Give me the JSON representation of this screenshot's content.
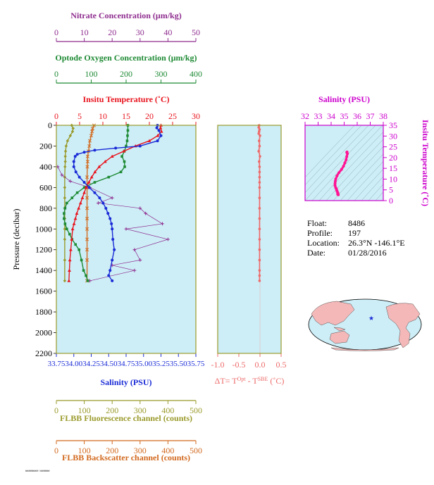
{
  "colors": {
    "nitrate": "#8e2c8e",
    "oxygen": "#1e8a34",
    "temperature": "#e8141e",
    "salinity": "#1a2bd6",
    "fluorescence": "#9a9a2c",
    "backscatter": "#d2691e",
    "delta_t": "#ee6a6a",
    "ts_axis": "#cc00cc",
    "ts_curve": "#ff1493",
    "plot_bg": "#cdeef7"
  },
  "info": {
    "float_label": "Float:",
    "float": "8486",
    "profile_label": "Profile:",
    "profile": "197",
    "location_label": "Location:",
    "location": "26.3°N  -146.1°E",
    "date_label": "Date:",
    "date": "01/28/2016"
  },
  "stamp": "######## / ######",
  "chart_data": [
    {
      "type": "line",
      "title": "",
      "ylabel": "Pressure (decibar)",
      "ylim": [
        2200,
        0
      ],
      "y_ticks": [
        0,
        200,
        400,
        600,
        800,
        1000,
        1200,
        1400,
        1600,
        1800,
        2000,
        2200
      ],
      "axes": {
        "nitrate": {
          "label": "Nitrate Concentration (μm/kg)",
          "range": [
            0,
            50
          ],
          "ticks": [
            0,
            10,
            20,
            30,
            40,
            50
          ]
        },
        "oxygen": {
          "label": "Optode Oxygen Concentration (μm/kg)",
          "range": [
            0,
            400
          ],
          "ticks": [
            0,
            100,
            200,
            300,
            400
          ]
        },
        "temperature": {
          "label": "Insitu Temperature (˚C)",
          "range": [
            0,
            30
          ],
          "ticks": [
            0,
            5,
            10,
            15,
            20,
            25,
            30
          ]
        },
        "salinity": {
          "label": "Salinity (PSU)",
          "range": [
            33.75,
            35.75
          ],
          "ticks": [
            "33.75",
            "34.00",
            "34.25",
            "34.50",
            "34.75",
            "35.00",
            "35.25",
            "35.50",
            "35.75"
          ]
        },
        "fluorescence": {
          "label": "FLBB Fluorescence channel (counts)",
          "range": [
            0,
            500
          ],
          "ticks": [
            0,
            100,
            200,
            300,
            400,
            500
          ]
        },
        "backscatter": {
          "label": "FLBB Backscatter channel (counts)",
          "range": [
            0,
            500
          ],
          "ticks": [
            0,
            100,
            200,
            300,
            400,
            500
          ]
        }
      },
      "series": [
        {
          "name": "Insitu Temperature (˚C)",
          "axis": "temperature",
          "marker": "triangle",
          "x": [
            22.5,
            22.4,
            22.6,
            21.8,
            20,
            17,
            14.5,
            12,
            10.5,
            9.2,
            8.3,
            7.6,
            7,
            6.4,
            6,
            5.6,
            5.2,
            4.8,
            4.4,
            4.1,
            3.8,
            3.5,
            3.3,
            3.1,
            2.9,
            2.8,
            2.7
          ],
          "y": [
            0,
            25,
            60,
            100,
            150,
            200,
            250,
            300,
            350,
            400,
            450,
            500,
            550,
            600,
            650,
            700,
            750,
            800,
            850,
            900,
            950,
            1000,
            1100,
            1200,
            1300,
            1400,
            1500
          ]
        },
        {
          "name": "Salinity (PSU)",
          "axis": "salinity",
          "marker": "circle",
          "x": [
            35.2,
            35.19,
            35.22,
            35.25,
            35.2,
            34.95,
            34.6,
            34.3,
            34.15,
            34.05,
            34.02,
            34.0,
            34.0,
            34.03,
            34.08,
            34.15,
            34.22,
            34.3,
            34.37,
            34.42,
            34.46,
            34.49,
            34.52,
            34.54,
            34.55,
            34.56,
            34.58,
            34.55,
            34.52,
            34.5,
            34.55
          ],
          "y": [
            0,
            25,
            50,
            100,
            150,
            200,
            220,
            240,
            260,
            280,
            300,
            350,
            400,
            450,
            500,
            550,
            600,
            650,
            700,
            750,
            800,
            850,
            900,
            950,
            1000,
            1100,
            1200,
            1300,
            1400,
            1450,
            1500
          ]
        },
        {
          "name": "Optode Oxygen Concentration (μm/kg)",
          "axis": "oxygen",
          "marker": "square",
          "x": [
            205,
            205,
            204,
            203,
            200,
            195,
            188,
            195,
            196,
            185,
            150,
            110,
            80,
            60,
            45,
            30,
            25,
            22,
            22,
            25,
            30,
            38,
            45,
            55,
            65,
            72,
            78,
            85,
            90
          ],
          "y": [
            0,
            50,
            100,
            150,
            200,
            250,
            300,
            350,
            400,
            450,
            500,
            550,
            600,
            650,
            700,
            750,
            800,
            850,
            900,
            950,
            1000,
            1050,
            1100,
            1150,
            1200,
            1300,
            1400,
            1450,
            1500
          ]
        },
        {
          "name": "Nitrate Concentration (μm/kg)",
          "axis": "nitrate",
          "marker": "plus",
          "x": [
            0.5,
            2,
            5,
            12,
            20,
            15,
            30,
            32,
            38,
            25,
            40,
            28,
            30,
            20,
            28,
            12
          ],
          "y": [
            400,
            480,
            540,
            600,
            700,
            750,
            800,
            850,
            950,
            1000,
            1100,
            1200,
            1300,
            1350,
            1400,
            1500
          ]
        },
        {
          "name": "FLBB Fluorescence channel (counts)",
          "axis": "fluorescence",
          "marker": "diamond",
          "x": [
            55,
            60,
            58,
            50,
            40,
            35,
            33,
            32,
            32,
            31,
            30,
            30,
            30,
            30,
            30,
            30,
            30,
            30,
            30
          ],
          "y": [
            0,
            30,
            60,
            100,
            150,
            200,
            250,
            300,
            350,
            400,
            500,
            600,
            700,
            800,
            900,
            1000,
            1100,
            1300,
            1500
          ]
        },
        {
          "name": "FLBB Backscatter channel (counts)",
          "axis": "backscatter",
          "marker": "cross",
          "x": [
            135,
            130,
            128,
            125,
            120,
            118,
            115,
            112,
            112,
            111,
            110,
            110,
            110,
            110,
            110,
            110,
            110,
            110,
            110,
            110
          ],
          "y": [
            0,
            30,
            60,
            100,
            150,
            200,
            250,
            300,
            350,
            400,
            500,
            600,
            700,
            800,
            900,
            1000,
            1100,
            1200,
            1300,
            1500
          ]
        }
      ]
    },
    {
      "type": "line",
      "title": "",
      "xlabel": "ΔT= T^Opt - T^SBE (˚C)",
      "xlabel_main": "ΔT= T",
      "xlabel_sup1": "Opt",
      "xlabel_mid": " - T",
      "xlabel_sup2": "SBE",
      "xlabel_tail": " (˚C)",
      "xlim": [
        -1.0,
        0.5
      ],
      "x_ticks": [
        "-1.0",
        "-0.5",
        "0.0",
        "0.5"
      ],
      "ylim": [
        2200,
        0
      ],
      "series": [
        {
          "name": "ΔT",
          "marker": "circle",
          "x": [
            -0.02,
            -0.03,
            -0.01,
            -0.02,
            -0.03,
            0.0,
            -0.02,
            -0.01,
            -0.03,
            0.0,
            -0.02,
            -0.01,
            -0.01,
            -0.01,
            -0.01,
            -0.01,
            -0.01,
            -0.01,
            -0.01,
            -0.01,
            -0.01,
            -0.01,
            -0.01,
            -0.01,
            -0.01,
            -0.01
          ],
          "y": [
            0,
            20,
            40,
            60,
            80,
            100,
            150,
            200,
            250,
            300,
            350,
            400,
            450,
            500,
            550,
            600,
            700,
            800,
            900,
            1000,
            1100,
            1200,
            1300,
            1400,
            1450,
            1500
          ]
        }
      ]
    },
    {
      "type": "scatter",
      "title": "",
      "xlabel": "Salinity (PSU)",
      "ylabel": "Insitu Temperature (˚C)",
      "xlim": [
        32,
        38
      ],
      "ylim": [
        0,
        35
      ],
      "x_ticks": [
        32,
        33,
        34,
        35,
        36,
        37,
        38
      ],
      "y_ticks": [
        0,
        5,
        10,
        15,
        20,
        25,
        30,
        35
      ],
      "series": [
        {
          "name": "T-S",
          "x": [
            34.55,
            34.5,
            34.52,
            34.48,
            34.45,
            34.42,
            34.4,
            34.35,
            34.3,
            34.3,
            34.32,
            34.35,
            34.45,
            34.6,
            34.8,
            34.95,
            35.05,
            35.15,
            35.2,
            35.25,
            35.2,
            35.22
          ],
          "y": [
            2.7,
            3.0,
            3.5,
            4.0,
            4.5,
            5.0,
            5.5,
            6.0,
            7.0,
            8.0,
            9.0,
            10.0,
            11.5,
            13.0,
            14.5,
            16.0,
            17.5,
            19.0,
            20.5,
            21.8,
            22.4,
            22.6
          ]
        }
      ]
    }
  ]
}
